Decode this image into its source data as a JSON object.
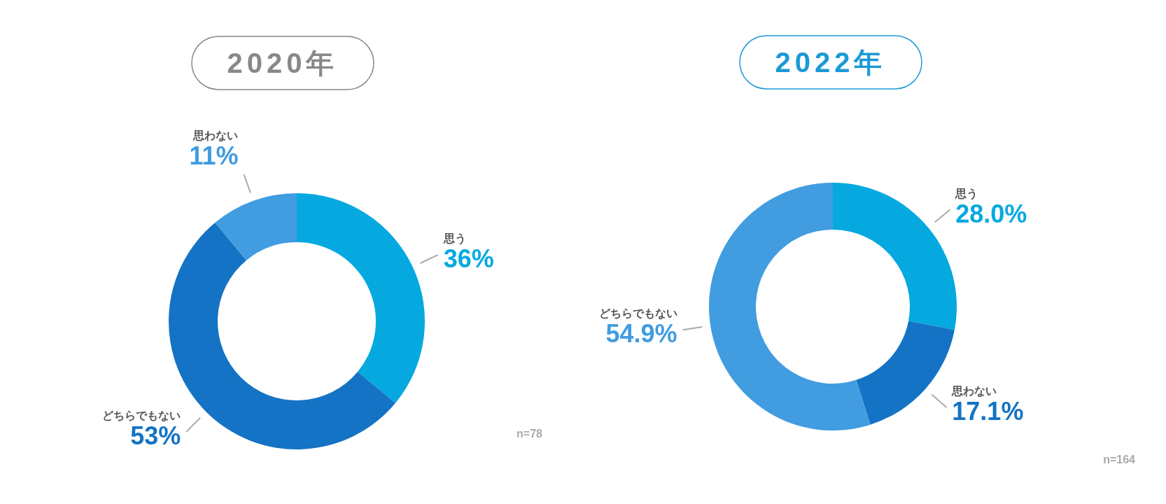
{
  "chart_data": [
    {
      "type": "donut",
      "title": "2020年",
      "categories": [
        "思う",
        "どちらでもない",
        "思わない"
      ],
      "values": [
        36,
        53,
        11
      ],
      "colors": [
        "#05a9e0",
        "#1473c4",
        "#419ce0"
      ],
      "value_labels": [
        "36%",
        "53%",
        "11%"
      ],
      "annotations": [
        "n=78"
      ]
    },
    {
      "type": "donut",
      "title": "2022年",
      "categories": [
        "思う",
        "思わない",
        "どちらでもない"
      ],
      "values": [
        28.0,
        17.1,
        54.9
      ],
      "colors": [
        "#05a9e0",
        "#1473c4",
        "#419ce0"
      ],
      "value_labels": [
        "28.0%",
        "17.1%",
        "54.9%"
      ],
      "annotations": [
        "n=164"
      ]
    }
  ]
}
